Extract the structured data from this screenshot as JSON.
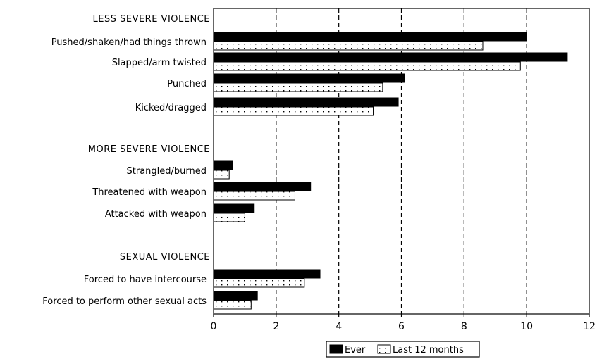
{
  "chart_data": {
    "type": "bar",
    "orientation": "horizontal",
    "groups": [
      {
        "label": "LESS SEVERE VIOLENCE",
        "categories": [
          "Pushed/shaken/had things thrown",
          "Slapped/arm twisted",
          "Punched",
          "Kicked/dragged"
        ]
      },
      {
        "label": "MORE SEVERE VIOLENCE",
        "categories": [
          "Strangled/burned",
          "Threatened with weapon",
          "Attacked with weapon"
        ]
      },
      {
        "label": "SEXUAL VIOLENCE",
        "categories": [
          "Forced to have intercourse",
          "Forced to perform other sexual acts"
        ]
      }
    ],
    "series": [
      {
        "name": "Ever",
        "values": [
          10.0,
          11.3,
          6.1,
          5.9,
          0.6,
          3.1,
          1.3,
          3.4,
          1.4
        ]
      },
      {
        "name": "Last 12 months",
        "values": [
          8.6,
          9.8,
          5.4,
          5.1,
          0.5,
          2.6,
          1.0,
          2.9,
          1.2
        ]
      }
    ],
    "xlim": [
      0,
      12
    ],
    "xticks": [
      "0",
      "2",
      "4",
      "6",
      "8",
      "10",
      "12"
    ],
    "grid": "vertical dashed",
    "legend_position": "bottom"
  }
}
